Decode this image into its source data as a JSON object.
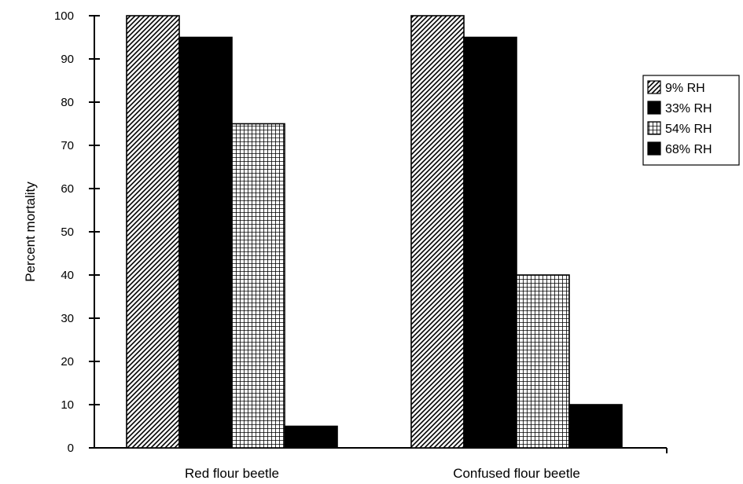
{
  "chart_data": {
    "type": "bar",
    "title": "",
    "xlabel": "",
    "ylabel": "Percent mortality",
    "ylim": [
      0,
      100
    ],
    "yticks": [
      0,
      10,
      20,
      30,
      40,
      50,
      60,
      70,
      80,
      90,
      100
    ],
    "grid": false,
    "legend_position": "right",
    "categories": [
      "Red flour beetle",
      "Confused flour beetle"
    ],
    "series": [
      {
        "name": "9% RH",
        "pattern": "diagonal-hatch",
        "values": [
          100,
          100
        ]
      },
      {
        "name": "33% RH",
        "pattern": "solid",
        "values": [
          95,
          95
        ]
      },
      {
        "name": "54% RH",
        "pattern": "grid",
        "values": [
          75,
          40
        ]
      },
      {
        "name": "68% RH",
        "pattern": "solid",
        "values": [
          5,
          10
        ]
      }
    ],
    "colors": {
      "ink": "#000000",
      "background": "#ffffff"
    }
  }
}
